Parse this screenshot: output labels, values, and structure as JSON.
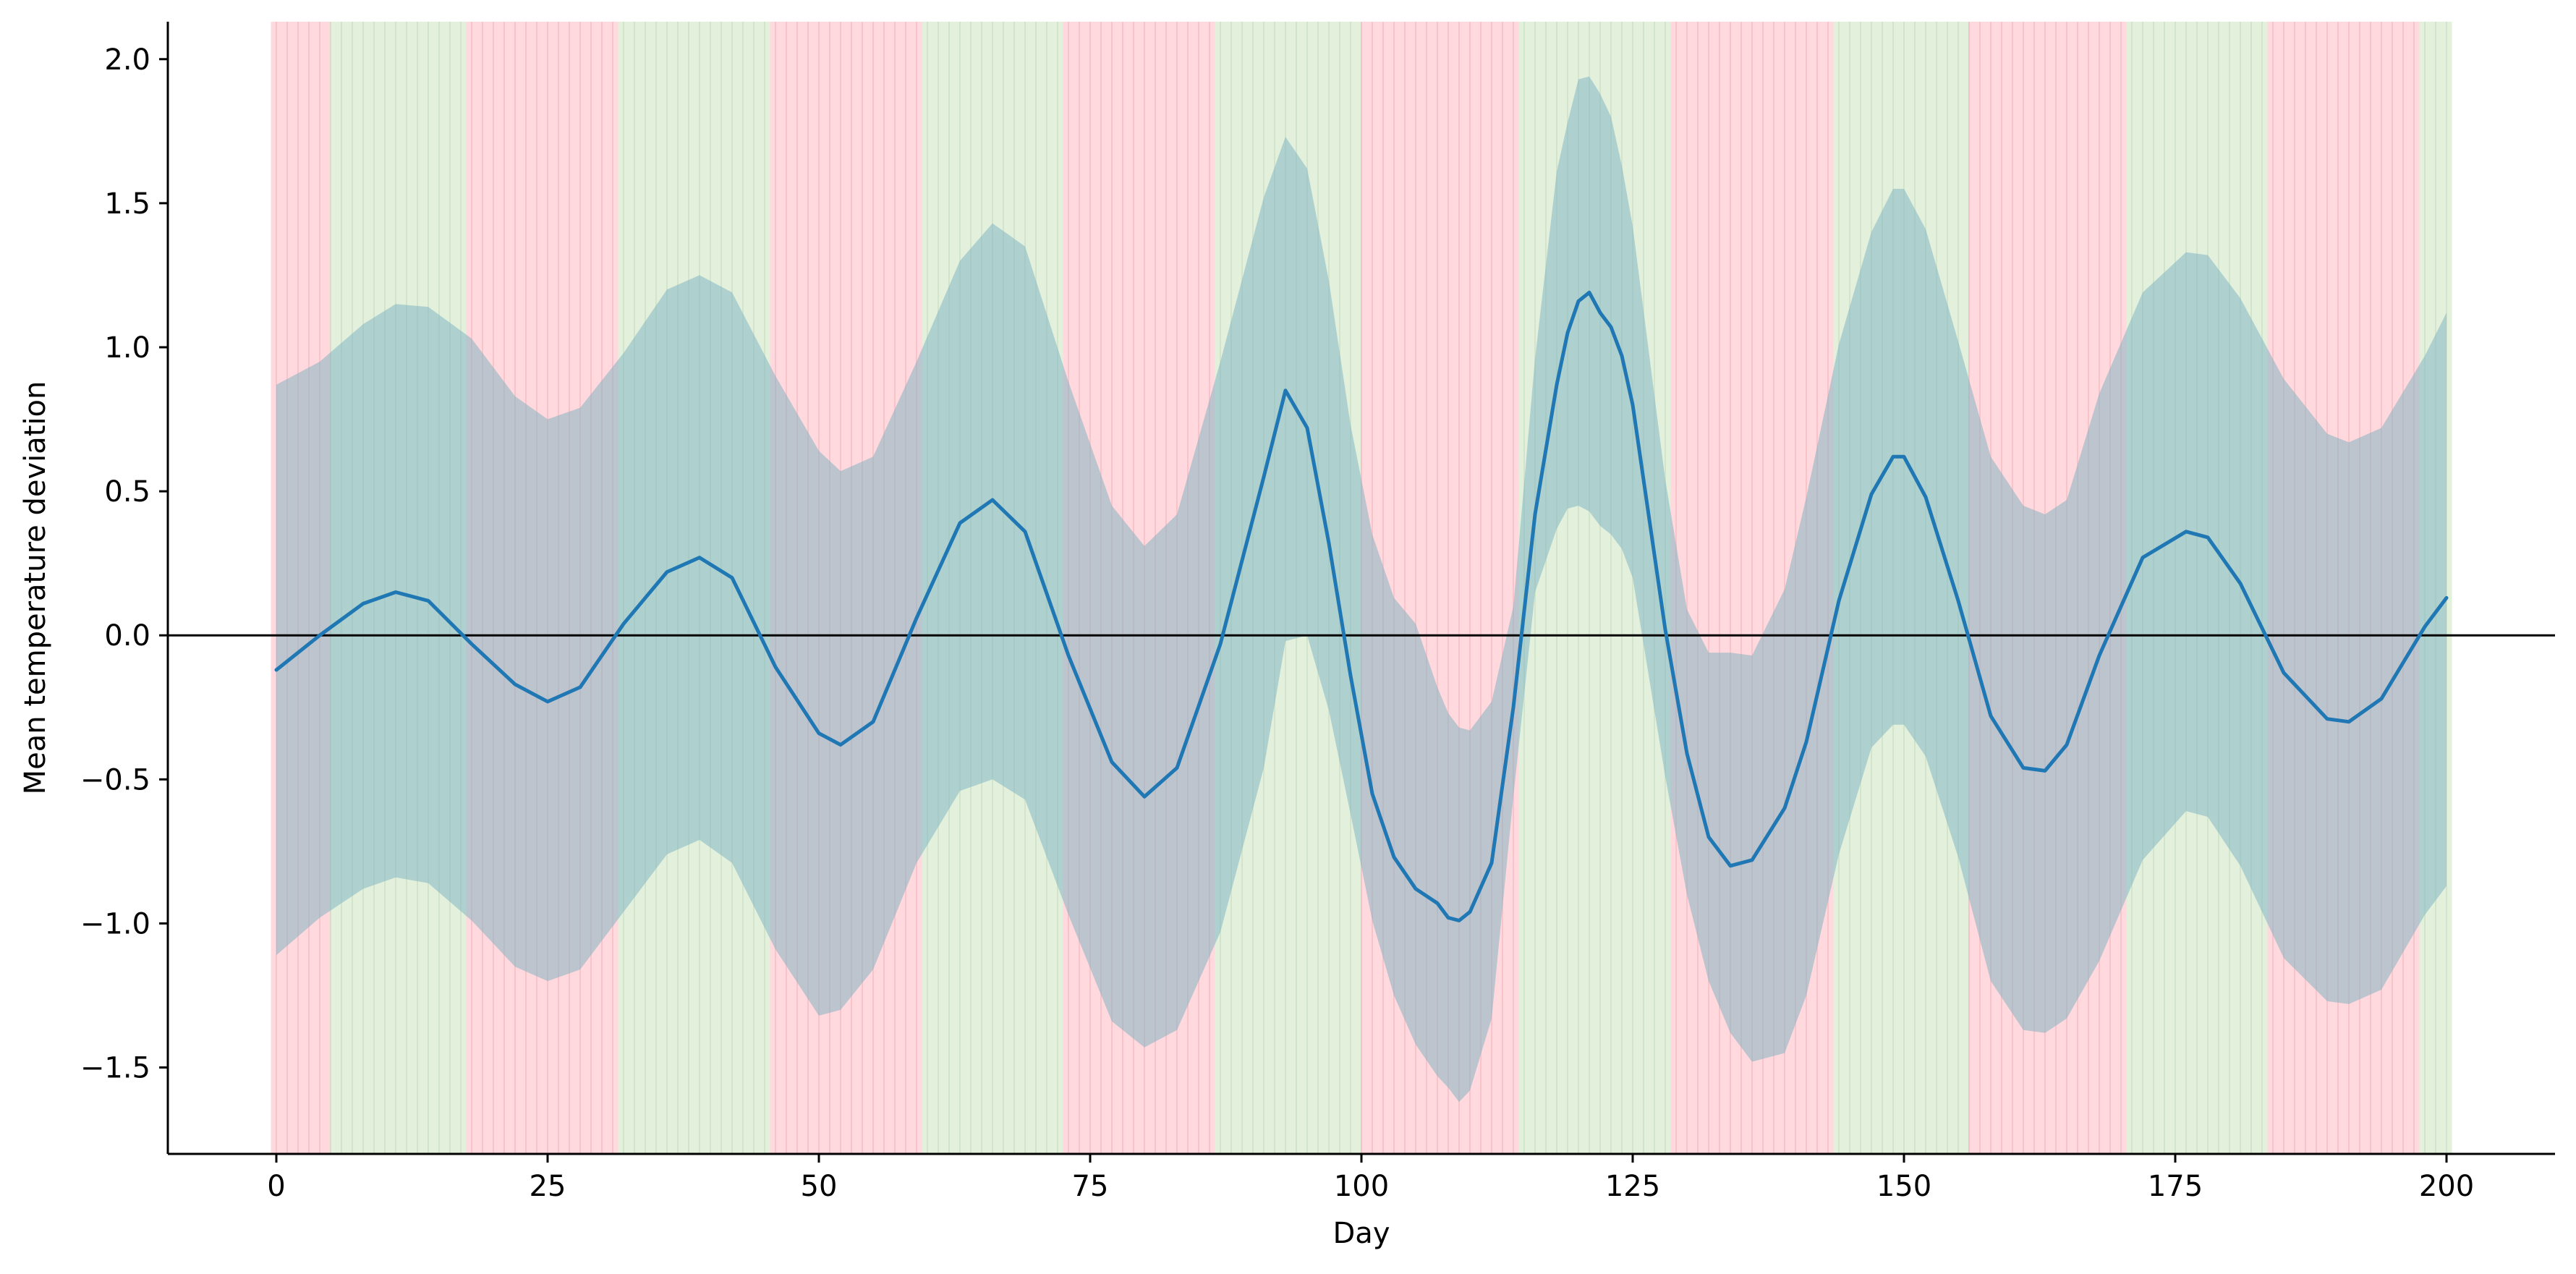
{
  "chart_data": {
    "type": "line",
    "title": "",
    "xlabel": "Day",
    "ylabel": "Mean temperature deviation",
    "xlim": [
      -10,
      210
    ],
    "ylim": [
      -1.8,
      2.13
    ],
    "x_ticks": [
      0,
      25,
      50,
      75,
      100,
      125,
      150,
      175,
      200
    ],
    "y_ticks": [
      -1.5,
      -1.0,
      -0.5,
      0.0,
      0.5,
      1.0,
      1.5,
      2.0
    ],
    "x_tick_labels": [
      "0",
      "25",
      "50",
      "75",
      "100",
      "125",
      "150",
      "175",
      "200"
    ],
    "y_tick_labels": [
      "−1.5",
      "−1.0",
      "−0.5",
      "0.0",
      "0.5",
      "1.0",
      "1.5",
      "2.0"
    ],
    "grid": false,
    "reference_line": {
      "y": 0.0,
      "color": "#000000"
    },
    "series": [
      {
        "x": [
          0,
          4,
          8,
          11,
          14,
          18,
          22,
          25,
          28,
          32,
          36,
          39,
          42,
          46,
          50,
          52,
          55,
          59,
          63,
          66,
          69,
          73,
          77,
          80,
          83,
          87,
          91,
          93,
          95,
          97,
          99,
          101,
          103,
          105,
          107,
          108,
          109,
          110,
          112,
          114,
          116,
          118,
          119,
          120,
          121,
          122,
          123,
          124,
          125,
          128,
          130,
          132,
          134,
          136,
          139,
          141,
          144,
          147,
          149,
          150,
          152,
          155,
          158,
          161,
          163,
          165,
          168,
          172,
          176,
          178,
          181,
          185,
          189,
          191,
          194,
          198,
          200
        ],
        "values": [
          -0.12,
          0.0,
          0.11,
          0.15,
          0.12,
          -0.03,
          -0.17,
          -0.23,
          -0.18,
          0.04,
          0.22,
          0.27,
          0.2,
          -0.11,
          -0.34,
          -0.38,
          -0.3,
          0.06,
          0.39,
          0.47,
          0.36,
          -0.07,
          -0.44,
          -0.56,
          -0.46,
          -0.03,
          0.55,
          0.85,
          0.72,
          0.32,
          -0.14,
          -0.55,
          -0.77,
          -0.88,
          -0.93,
          -0.98,
          -0.99,
          -0.96,
          -0.79,
          -0.25,
          0.42,
          0.87,
          1.05,
          1.16,
          1.19,
          1.12,
          1.07,
          0.97,
          0.8,
          0.02,
          -0.41,
          -0.7,
          -0.8,
          -0.78,
          -0.6,
          -0.37,
          0.12,
          0.49,
          0.62,
          0.62,
          0.48,
          0.12,
          -0.28,
          -0.46,
          -0.47,
          -0.38,
          -0.07,
          0.27,
          0.36,
          0.34,
          0.18,
          -0.13,
          -0.29,
          -0.3,
          -0.22,
          0.03,
          0.13
        ],
        "band_lower": [
          -1.11,
          -0.98,
          -0.88,
          -0.84,
          -0.86,
          -0.99,
          -1.15,
          -1.2,
          -1.16,
          -0.96,
          -0.76,
          -0.71,
          -0.79,
          -1.09,
          -1.32,
          -1.3,
          -1.16,
          -0.79,
          -0.54,
          -0.5,
          -0.57,
          -0.97,
          -1.34,
          -1.43,
          -1.37,
          -1.03,
          -0.46,
          -0.02,
          0.0,
          -0.26,
          -0.62,
          -0.99,
          -1.25,
          -1.42,
          -1.53,
          -1.57,
          -1.62,
          -1.58,
          -1.33,
          -0.56,
          0.15,
          0.37,
          0.44,
          0.45,
          0.43,
          0.38,
          0.35,
          0.3,
          0.2,
          -0.49,
          -0.9,
          -1.2,
          -1.38,
          -1.48,
          -1.45,
          -1.25,
          -0.76,
          -0.39,
          -0.31,
          -0.31,
          -0.42,
          -0.77,
          -1.2,
          -1.37,
          -1.38,
          -1.33,
          -1.13,
          -0.78,
          -0.61,
          -0.63,
          -0.8,
          -1.12,
          -1.27,
          -1.28,
          -1.23,
          -0.97,
          -0.87
        ],
        "band_upper": [
          0.87,
          0.95,
          1.08,
          1.15,
          1.14,
          1.03,
          0.83,
          0.75,
          0.79,
          0.98,
          1.2,
          1.25,
          1.19,
          0.9,
          0.64,
          0.57,
          0.62,
          0.95,
          1.3,
          1.43,
          1.35,
          0.88,
          0.45,
          0.31,
          0.42,
          0.95,
          1.52,
          1.73,
          1.62,
          1.23,
          0.73,
          0.35,
          0.13,
          0.04,
          -0.18,
          -0.27,
          -0.32,
          -0.33,
          -0.23,
          0.1,
          0.96,
          1.61,
          1.78,
          1.93,
          1.94,
          1.88,
          1.8,
          1.63,
          1.42,
          0.54,
          0.09,
          -0.06,
          -0.06,
          -0.07,
          0.16,
          0.48,
          1.01,
          1.4,
          1.55,
          1.55,
          1.41,
          1.02,
          0.62,
          0.45,
          0.42,
          0.47,
          0.84,
          1.19,
          1.33,
          1.32,
          1.17,
          0.89,
          0.7,
          0.67,
          0.72,
          0.97,
          1.12
        ]
      }
    ],
    "background_spans": [
      {
        "start": -0.5,
        "end": 5,
        "sign": "neg"
      },
      {
        "start": 5,
        "end": 17.5,
        "sign": "pos"
      },
      {
        "start": 17.5,
        "end": 31.5,
        "sign": "neg"
      },
      {
        "start": 31.5,
        "end": 45.5,
        "sign": "pos"
      },
      {
        "start": 45.5,
        "end": 59.5,
        "sign": "neg"
      },
      {
        "start": 59.5,
        "end": 72.5,
        "sign": "pos"
      },
      {
        "start": 72.5,
        "end": 86.5,
        "sign": "neg"
      },
      {
        "start": 86.5,
        "end": 100,
        "sign": "pos"
      },
      {
        "start": 100,
        "end": 114.5,
        "sign": "neg"
      },
      {
        "start": 114.5,
        "end": 128.5,
        "sign": "pos"
      },
      {
        "start": 128.5,
        "end": 143.5,
        "sign": "neg"
      },
      {
        "start": 143.5,
        "end": 156,
        "sign": "pos"
      },
      {
        "start": 156,
        "end": 170.5,
        "sign": "neg"
      },
      {
        "start": 170.5,
        "end": 183.5,
        "sign": "pos"
      },
      {
        "start": 183.5,
        "end": 197.5,
        "sign": "neg"
      },
      {
        "start": 197.5,
        "end": 200.5,
        "sign": "pos"
      }
    ],
    "colors": {
      "line": "#1f77b4",
      "band": "#7ab0c0",
      "positive_span": "#e2f0dc",
      "negative_span": "#ffd9dd",
      "positive_stripe": "#c9ddc3",
      "negative_stripe": "#f2b8c0",
      "axis": "#000000"
    }
  }
}
